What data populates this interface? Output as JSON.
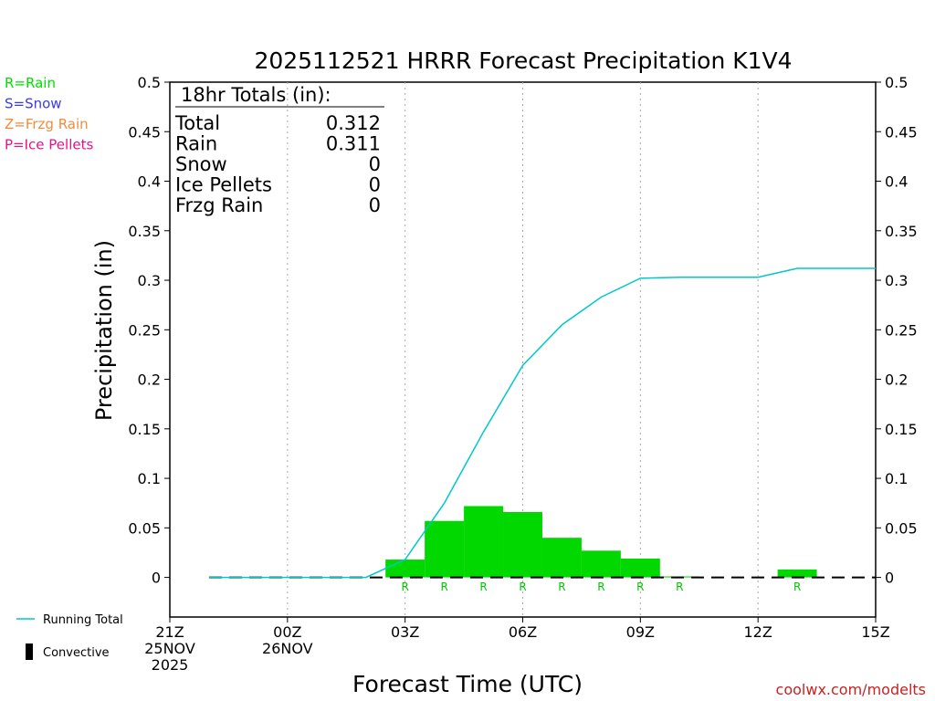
{
  "chart_data": {
    "type": "bar",
    "title": "2025112521 HRRR Forecast Precipitation K1V4",
    "ylabel": "Precipitation  (in)",
    "xlabel": "Forecast Time (UTC)",
    "ylim": [
      -0.04,
      0.5
    ],
    "xlim": [
      0,
      18
    ],
    "grid": "vertical dotted",
    "y_ticks": [
      0,
      0.05,
      0.1,
      0.15,
      0.2,
      0.25,
      0.3,
      0.35,
      0.4,
      0.45,
      0.5
    ],
    "y_tick_labels": [
      "0",
      "0.05",
      "0.1",
      "0.15",
      "0.2",
      "0.25",
      "0.3",
      "0.35",
      "0.4",
      "0.45",
      "0.5"
    ],
    "x_ticks": [
      {
        "hour": 0,
        "lines": [
          "21Z",
          "25NOV",
          "2025"
        ]
      },
      {
        "hour": 3,
        "lines": [
          "00Z",
          "26NOV"
        ]
      },
      {
        "hour": 6,
        "lines": [
          "03Z"
        ]
      },
      {
        "hour": 9,
        "lines": [
          "06Z"
        ]
      },
      {
        "hour": 12,
        "lines": [
          "09Z"
        ]
      },
      {
        "hour": 15,
        "lines": [
          "12Z"
        ]
      },
      {
        "hour": 18,
        "lines": [
          "15Z"
        ]
      }
    ],
    "hourly_precip": {
      "name": "Hourly Precipitation",
      "color": "#00d800",
      "bars": [
        {
          "start": 5.5,
          "end": 6.5,
          "value": 0.018
        },
        {
          "start": 6.5,
          "end": 7.5,
          "value": 0.057
        },
        {
          "start": 7.5,
          "end": 8.5,
          "value": 0.072
        },
        {
          "start": 8.5,
          "end": 9.5,
          "value": 0.066
        },
        {
          "start": 9.5,
          "end": 10.5,
          "value": 0.04
        },
        {
          "start": 10.5,
          "end": 11.5,
          "value": 0.027
        },
        {
          "start": 11.5,
          "end": 12.5,
          "value": 0.019
        },
        {
          "start": 12.5,
          "end": 13.5,
          "value": 0.001
        },
        {
          "start": 15.5,
          "end": 16.5,
          "value": 0.008
        }
      ]
    },
    "running_total": {
      "name": "Running Total",
      "color": "#00c8c8",
      "x": [
        1,
        2,
        3,
        4,
        5,
        6,
        7,
        8,
        9,
        10,
        11,
        12,
        13,
        14,
        15,
        16,
        17,
        18
      ],
      "values": [
        0,
        0,
        0,
        0,
        0,
        0.018,
        0.075,
        0.147,
        0.214,
        0.255,
        0.283,
        0.302,
        0.303,
        0.303,
        0.303,
        0.312,
        0.312,
        0.312
      ]
    },
    "ptype_markers": {
      "color": "#00c800",
      "hours": [
        6,
        7,
        8,
        9,
        10,
        11,
        12,
        13,
        16
      ],
      "labels": [
        "R",
        "R",
        "R",
        "R",
        "R",
        "R",
        "R",
        "R",
        "R"
      ]
    },
    "convective_line_hours": [
      1,
      18
    ],
    "totals_box": {
      "header": "18hr Totals (in):",
      "rows": [
        {
          "label": "Total",
          "value": "0.312"
        },
        {
          "label": "Rain",
          "value": "0.311"
        },
        {
          "label": "Snow",
          "value": "0"
        },
        {
          "label": "Ice Pellets",
          "value": "0"
        },
        {
          "label": "Frzg Rain",
          "value": "0"
        }
      ]
    },
    "ptype_legend": [
      {
        "text": "R=Rain",
        "color": "#00e000"
      },
      {
        "text": "S=Snow",
        "color": "#3a3af0"
      },
      {
        "text": "Z=Frzg Rain",
        "color": "#f08c3c"
      },
      {
        "text": "P=Ice Pellets",
        "color": "#e0148c"
      }
    ],
    "series_legend": [
      {
        "text": "Running Total",
        "color": "#00c8c8",
        "kind": "line"
      },
      {
        "text": "Convective",
        "color": "#000000",
        "kind": "bar"
      }
    ],
    "credit": "coolwx.com/modelts",
    "credit_color": "#cc2020"
  }
}
